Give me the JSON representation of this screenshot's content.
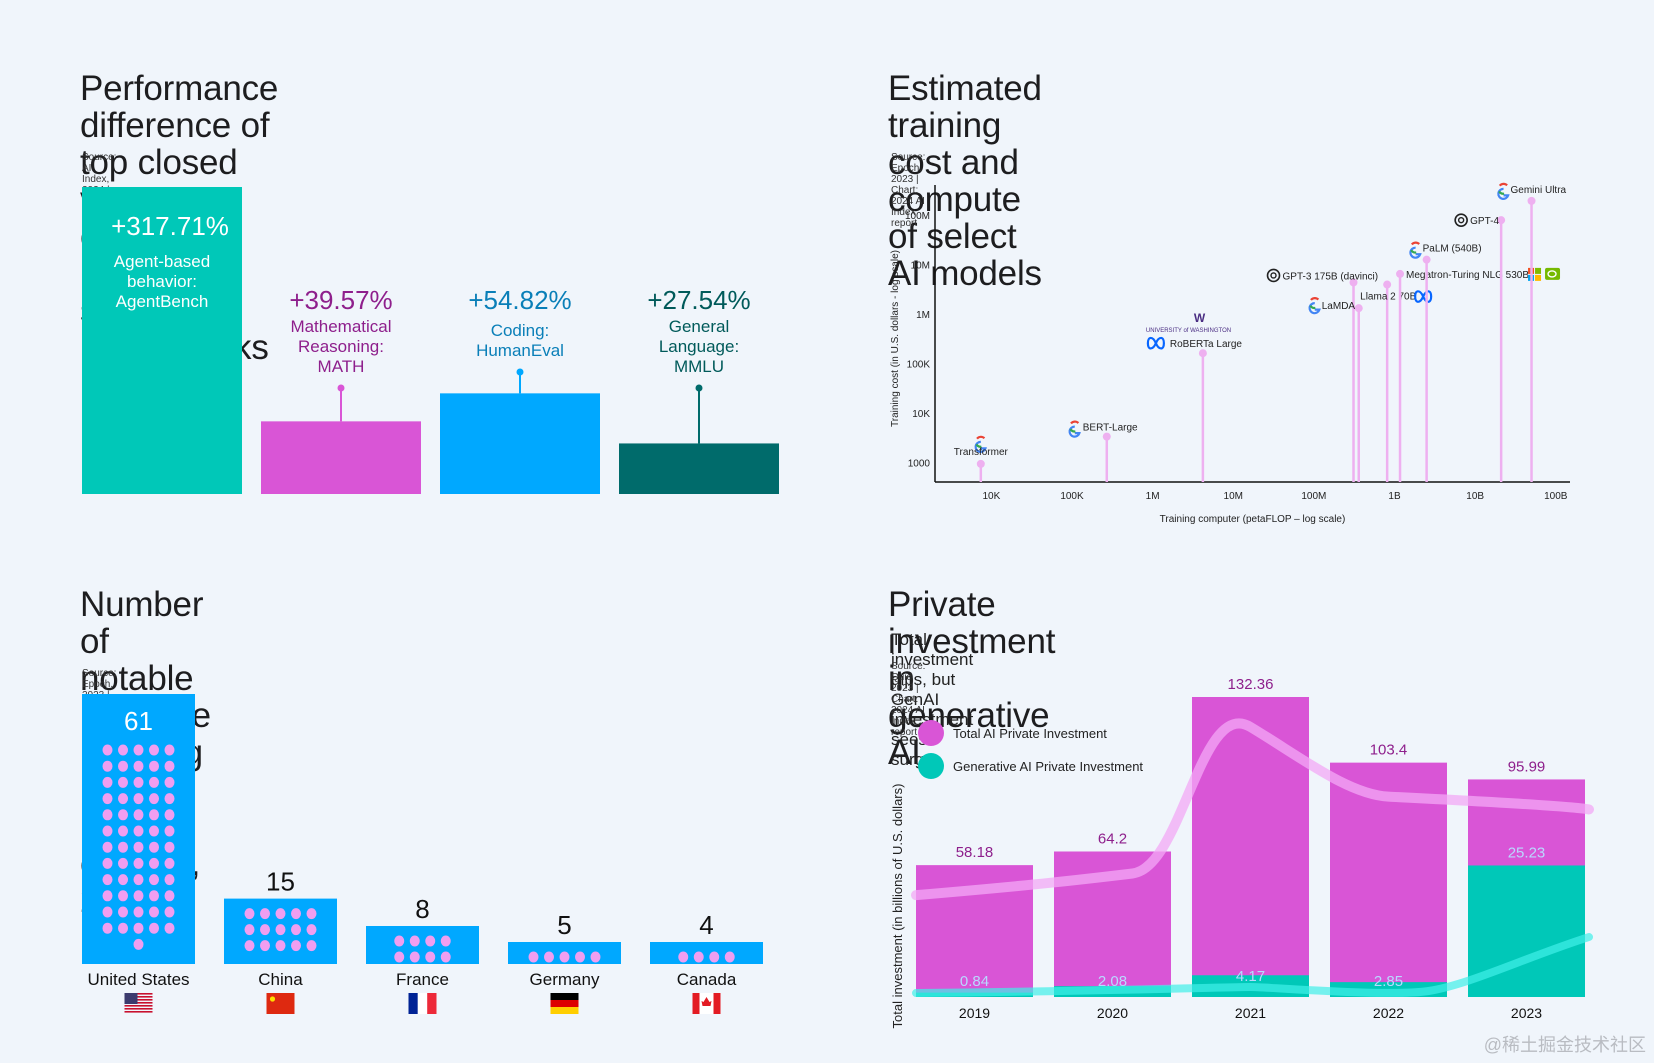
{
  "watermark": "@稀土掘金技术社区",
  "colors": {
    "background": "#f0f5fb",
    "teal": "#00c8b8",
    "magenta": "#d955d6",
    "blue": "#00a8ff",
    "dark_teal": "#006b6b",
    "pink_dot": "#f09ef0",
    "stem_pink": "#eeb0f0"
  },
  "panels": {
    "benchmarks": {
      "title_line1": "Performance difference of top closed vs.",
      "title_line2": "open models on select benchmarks",
      "source": "Source: AI Index, 2024 | Chart: 2024 AI Index report"
    },
    "training_cost": {
      "title_line1": "Estimated training cost and compute",
      "title_line2": "of select AI models",
      "source": "Source: Epoch, 2023 | Chart: 2024 AI Index report"
    },
    "countries": {
      "title_line1": "Number of notable machine",
      "title_line2": "learning models by country, 2023",
      "source": "Source: Epoch, 2023 | Chart: 2024 AI Index report"
    },
    "investment": {
      "title": "Private investment in generative AI",
      "subtitle": "Total investment dips, but GenAI investment sees surge",
      "source": "Source: Quid 2023 | Chart: 2024 AI Index report"
    }
  },
  "chart_data": [
    {
      "id": "benchmarks",
      "type": "bar",
      "title": "Performance difference of top closed vs. open models on select benchmarks",
      "categories": [
        "Agent-based behavior: AgentBench",
        "Mathematical Reasoning: MATH",
        "Coding: HumanEval",
        "General Language: MMLU"
      ],
      "values": [
        317.71,
        39.57,
        54.82,
        27.54
      ],
      "value_labels": [
        "+317.71%",
        "+39.57%",
        "+54.82%",
        "+27.54%"
      ],
      "label_lines": [
        [
          "Agent-based",
          "behavior:",
          "AgentBench"
        ],
        [
          "Mathematical",
          "Reasoning:",
          "MATH"
        ],
        [
          "Coding:",
          "HumanEval"
        ],
        [
          "General",
          "Language:",
          "MMLU"
        ]
      ],
      "bar_colors": [
        "#00c8b8",
        "#d955d6",
        "#00a8ff",
        "#006b6b"
      ],
      "text_colors": [
        "#ffffff",
        "#8e1f8c",
        "#0a7fb8",
        "#005a5a"
      ],
      "unit": "%"
    },
    {
      "id": "training_cost",
      "type": "scatter",
      "title": "Estimated training cost and compute of select AI models",
      "xlabel": "Training computer (petaFLOP – log scale)",
      "ylabel": "Training cost (in U.S. dollars - log scale)",
      "xscale": "log",
      "yscale": "log",
      "xlim": [
        2000,
        150000000000
      ],
      "ylim": [
        400,
        400000000
      ],
      "xticks": [
        {
          "v": 10000,
          "label": "10K"
        },
        {
          "v": 100000,
          "label": "100K"
        },
        {
          "v": 1000000,
          "label": "1M"
        },
        {
          "v": 10000000,
          "label": "10M"
        },
        {
          "v": 100000000,
          "label": "100M"
        },
        {
          "v": 1000000000,
          "label": "1B"
        },
        {
          "v": 10000000000,
          "label": "10B"
        },
        {
          "v": 100000000000,
          "label": "100B"
        }
      ],
      "yticks": [
        {
          "v": 1000,
          "label": "1000"
        },
        {
          "v": 10000,
          "label": "10K"
        },
        {
          "v": 100000,
          "label": "100K"
        },
        {
          "v": 1000000,
          "label": "1M"
        },
        {
          "v": 10000000,
          "label": "10M"
        },
        {
          "v": 100000000,
          "label": "100M"
        }
      ],
      "points": [
        {
          "name": "Transformer",
          "x": 7400,
          "y": 930,
          "org": "google",
          "label_pos": "above"
        },
        {
          "name": "BERT-Large",
          "x": 270000,
          "y": 3300,
          "org": "google",
          "label_pos": "above-right"
        },
        {
          "name": "RoBERTa Large",
          "x": 4200000,
          "y": 160000,
          "org": "meta+uw",
          "label_pos": "above"
        },
        {
          "name": "GPT-3 175B (davinci)",
          "x": 310000000,
          "y": 4300000,
          "org": "openai",
          "label_pos": "above-left"
        },
        {
          "name": "LaMDA",
          "x": 360000000,
          "y": 1300000,
          "org": "google",
          "label_pos": "left"
        },
        {
          "name": "Llama 2 70B",
          "x": 810000000,
          "y": 3900000,
          "org": "meta",
          "label_pos": "right"
        },
        {
          "name": "Megatron-Turing NLG 530B",
          "x": 1170000000,
          "y": 6400000,
          "org": "microsoft+nvidia",
          "label_pos": "right"
        },
        {
          "name": "PaLM (540B)",
          "x": 2500000000,
          "y": 12400000,
          "org": "google",
          "label_pos": "above"
        },
        {
          "name": "GPT-4",
          "x": 21000000000,
          "y": 78000000,
          "org": "openai",
          "label_pos": "left"
        },
        {
          "name": "Gemini Ultra",
          "x": 50000000000,
          "y": 191000000,
          "org": "google",
          "label_pos": "above"
        }
      ]
    },
    {
      "id": "countries",
      "type": "bar",
      "title": "Number of notable machine learning models by country, 2023",
      "categories": [
        "United States",
        "China",
        "France",
        "Germany",
        "Canada"
      ],
      "values": [
        61,
        15,
        8,
        5,
        4
      ],
      "flags": [
        "us-flag",
        "china-flag",
        "france-flag",
        "germany-flag",
        "canada-flag"
      ],
      "dots_per_row": [
        5,
        5,
        4,
        5,
        4
      ]
    },
    {
      "id": "investment",
      "type": "bar",
      "title": "Private investment in generative AI",
      "ylabel": "Total investment (in billions of U.S. dollars)",
      "categories": [
        "2019",
        "2020",
        "2021",
        "2022",
        "2023"
      ],
      "series": [
        {
          "name": "Total AI Private Investment",
          "values": [
            58.18,
            64.2,
            132.36,
            103.4,
            95.99
          ],
          "color": "#d955d6"
        },
        {
          "name": "Generative AI Private Investment",
          "values": [
            0.84,
            2.08,
            4.17,
            2.85,
            25.23
          ],
          "color": "#00c8b8"
        }
      ],
      "ylim": [
        0,
        140
      ],
      "legend": "top-left"
    }
  ]
}
